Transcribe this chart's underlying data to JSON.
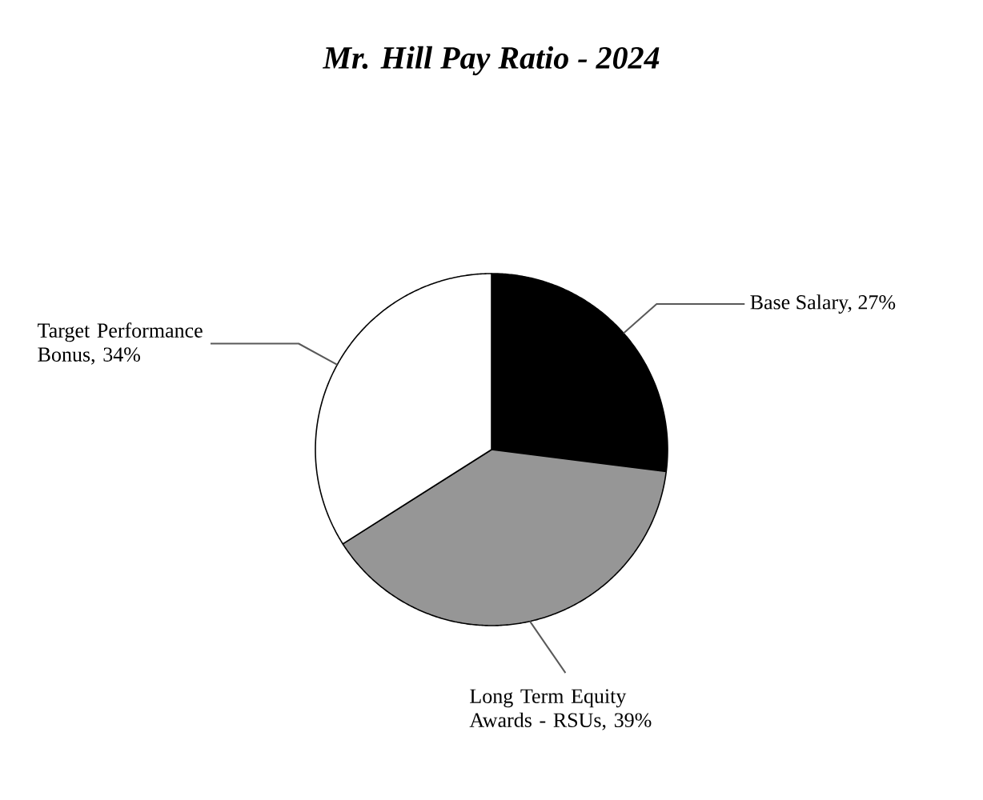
{
  "chart_data": {
    "type": "pie",
    "title": "Mr. Hill Pay Ratio - 2024",
    "categories": [
      "Base Salary, 27%",
      "Long Term Equity Awards - RSUs, 39%",
      "Target Performance Bonus, 34%"
    ],
    "values": [
      27,
      39,
      34
    ],
    "colors": [
      "#000000",
      "#969696",
      "#ffffff"
    ]
  }
}
